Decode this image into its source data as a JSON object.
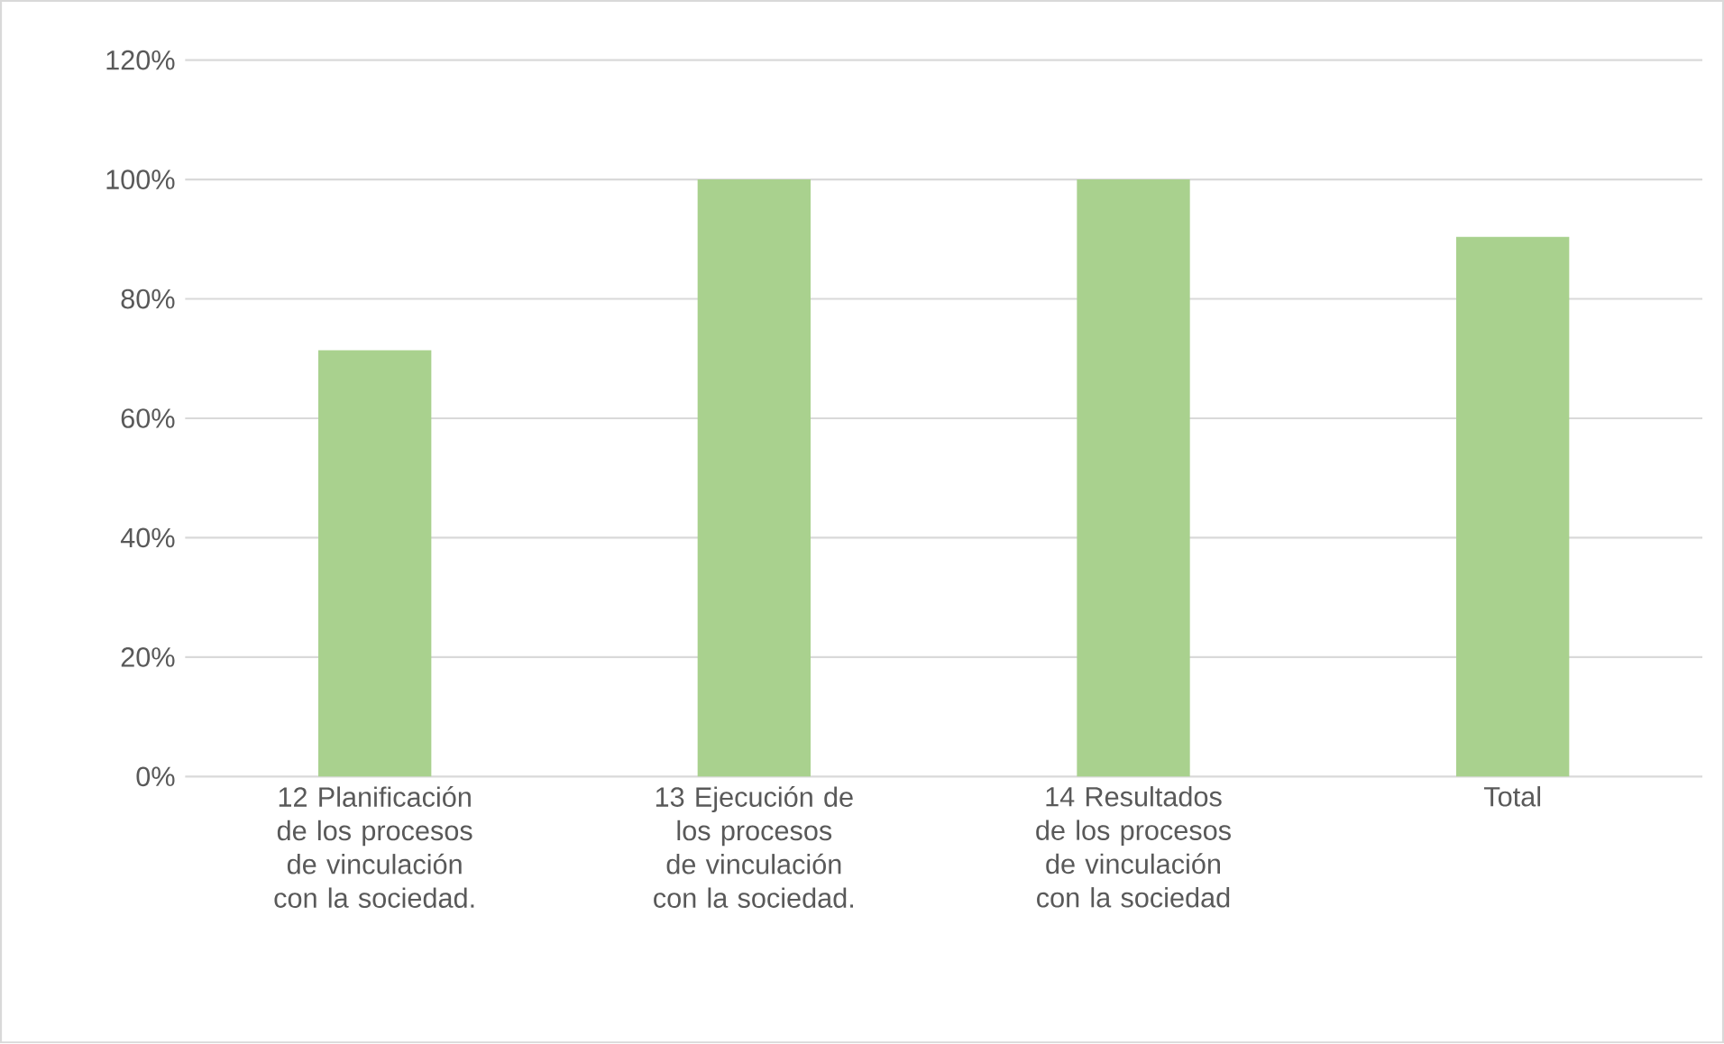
{
  "chart_data": {
    "type": "bar",
    "categories": [
      "12 Planificación de los procesos de vinculación con la sociedad.",
      "13 Ejecución de los procesos de vinculación con la sociedad.",
      "14 Resultados de los procesos de vinculación con la sociedad",
      "Total"
    ],
    "values": [
      71.4,
      100,
      100,
      90.4
    ],
    "color": "#a9d18e",
    "ylim": [
      0,
      120
    ],
    "yticks": [
      {
        "value": 0,
        "label": "0%"
      },
      {
        "value": 20,
        "label": "20%"
      },
      {
        "value": 40,
        "label": "40%"
      },
      {
        "value": 60,
        "label": "60%"
      },
      {
        "value": 80,
        "label": "80%"
      },
      {
        "value": 100,
        "label": "100%"
      },
      {
        "value": 120,
        "label": "120%"
      }
    ],
    "grid": "y"
  }
}
